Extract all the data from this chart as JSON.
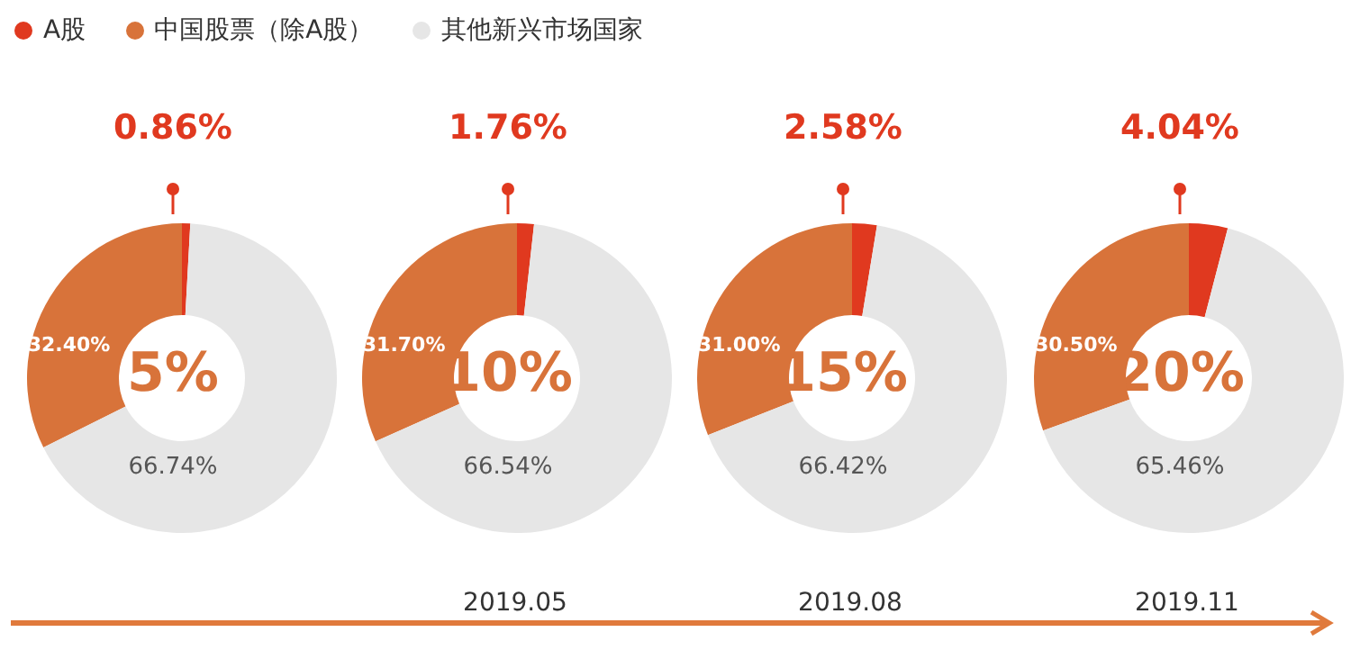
{
  "chart_data": [
    {
      "type": "donut",
      "title": "5%",
      "categories": [
        "A股",
        "中国股票（除A股）",
        "其他新兴市场国家"
      ],
      "values": [
        0.86,
        32.4,
        66.74
      ],
      "value_labels": [
        "0.86%",
        "32.40%",
        "66.74%"
      ],
      "colors": [
        "#e0391f",
        "#d8733a",
        "#e6e6e6"
      ],
      "legend": "top"
    },
    {
      "type": "donut",
      "title": "10%",
      "categories": [
        null,
        null,
        null
      ],
      "values": [
        1.76,
        31.7,
        66.54
      ],
      "value_labels": [
        "1.76%",
        "31.70%",
        "66.54%"
      ],
      "colors": [
        "#e0391f",
        "#d8733a",
        "#e6e6e6"
      ],
      "annotations": [
        "2019.05"
      ]
    },
    {
      "type": "donut",
      "title": "15%",
      "categories": [
        null,
        null,
        null
      ],
      "values": [
        2.58,
        31.0,
        66.42
      ],
      "value_labels": [
        "2.58%",
        "31.00%",
        "66.42%"
      ],
      "colors": [
        "#e0391f",
        "#d8733a",
        "#e6e6e6"
      ],
      "annotations": [
        "2019.08"
      ]
    },
    {
      "type": "donut",
      "title": "20%",
      "categories": [
        null,
        null,
        null
      ],
      "values": [
        4.04,
        30.5,
        65.46
      ],
      "value_labels": [
        "4.04%",
        "30.50%",
        "65.46%"
      ],
      "colors": [
        "#e0391f",
        "#d8733a",
        "#e6e6e6"
      ],
      "annotations": [
        "2019.11"
      ]
    }
  ]
}
